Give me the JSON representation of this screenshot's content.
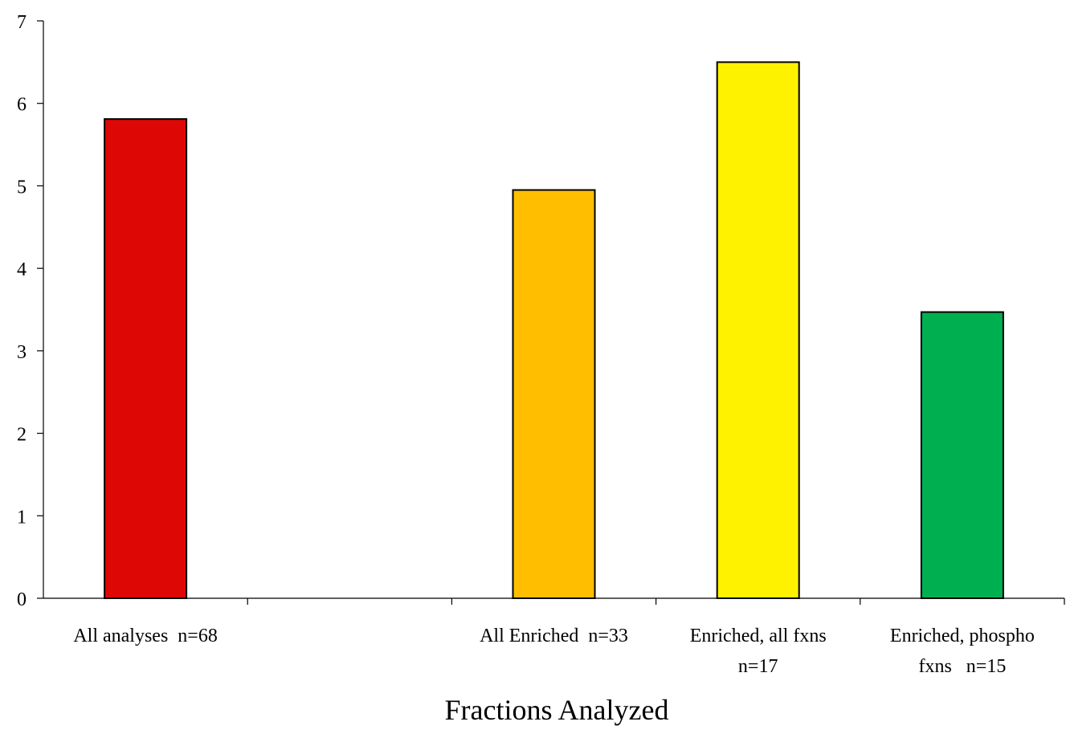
{
  "chart_data": {
    "type": "bar",
    "xlabel": "Fractions Analyzed",
    "ylabel": "",
    "ylim": [
      0,
      7
    ],
    "yticks": [
      0,
      1,
      2,
      3,
      4,
      5,
      6,
      7
    ],
    "grid": false,
    "categories": [
      {
        "lines": [
          "All analyses  n=68"
        ]
      },
      {
        "lines": [
          ""
        ]
      },
      {
        "lines": [
          "All Enriched  n=33"
        ]
      },
      {
        "lines": [
          "Enriched, all fxns",
          "n=17"
        ]
      },
      {
        "lines": [
          "Enriched, phospho",
          "fxns   n=15"
        ]
      }
    ],
    "values": [
      5.81,
      null,
      4.95,
      6.5,
      3.47
    ],
    "colors": [
      "#dd0806",
      null,
      "#ffbf00",
      "#fff200",
      "#00b050"
    ]
  }
}
